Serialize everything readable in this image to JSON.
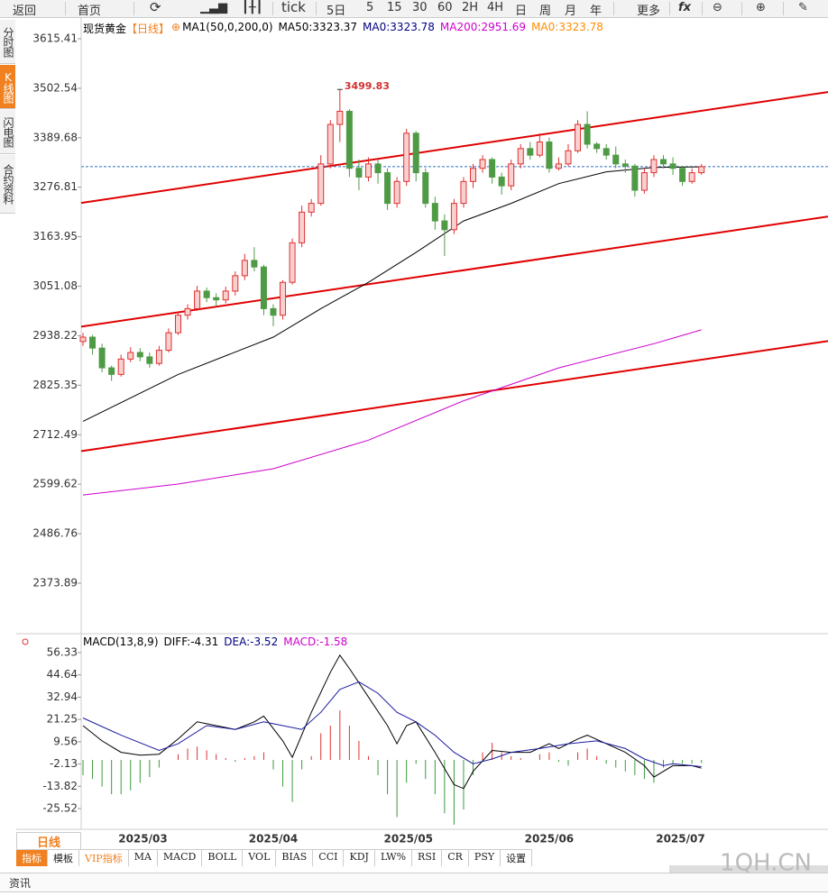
{
  "toolbar": [
    "返回",
    "首页",
    "tick",
    "5日",
    "5",
    "15",
    "30",
    "60",
    "2H",
    "4H",
    "日",
    "周",
    "月",
    "年",
    "更多"
  ],
  "sidebar": [
    "分时图",
    "K线图",
    "闪电图",
    "合约资料"
  ],
  "period_button": "日线",
  "tabs": [
    "指标",
    "模板",
    "VIP指标",
    "MA",
    "MACD",
    "BOLL",
    "VOL",
    "BIAS",
    "CCI",
    "KDJ",
    "LW%",
    "RSI",
    "CR",
    "PSY",
    "设置"
  ],
  "news_tab": "资讯",
  "watermark": "1QH.CN",
  "chart_data": [
    {
      "type": "candlestick",
      "title": "现货黄金",
      "period": "【日线】",
      "indicator": "MA1(50,0,200,0)",
      "legend": [
        {
          "label": "MA50:",
          "value": 3323.37,
          "color": "#000000"
        },
        {
          "label": "MA0:",
          "value": 3323.78,
          "color": "#000080"
        },
        {
          "label": "MA200:",
          "value": 2951.69,
          "color": "#cc00cc"
        },
        {
          "label": "MA0:",
          "value": 3323.78,
          "color": "#ff8c00"
        }
      ],
      "xlim": [
        -0.19,
        78.3
      ],
      "ylim": [
        2264.9,
        3662.7
      ],
      "yticks": [
        3615.41,
        3502.54,
        3389.68,
        3276.81,
        3163.95,
        3051.08,
        2938.22,
        2825.35,
        2712.49,
        2599.62,
        2486.76,
        2373.89
      ],
      "grid": false,
      "up_color": "#e03030",
      "up_fill": "#f8d0d0",
      "down_color": "#4f9a45",
      "open": [
        2925,
        2935,
        2910,
        2865,
        2850,
        2885,
        2900,
        2890,
        2875,
        2905,
        2945,
        2985,
        3000,
        3040,
        3025,
        3020,
        3040,
        3075,
        3110,
        3095,
        3000,
        2985,
        3060,
        3150,
        3220,
        3240,
        3330,
        3420,
        3450,
        3320,
        3300,
        3330,
        3310,
        3240,
        3290,
        3400,
        3310,
        3240,
        3200,
        3180,
        3240,
        3290,
        3320,
        3340,
        3300,
        3280,
        3330,
        3365,
        3350,
        3380,
        3320,
        3330,
        3360,
        3420,
        3375,
        3365,
        3350,
        3330,
        3325,
        3270,
        3310,
        3340,
        3330,
        3320,
        3290,
        3310
      ],
      "high": [
        2945,
        2940,
        2920,
        2870,
        2895,
        2912,
        2910,
        2900,
        2915,
        2955,
        2992,
        3010,
        3052,
        3048,
        3035,
        3050,
        3085,
        3125,
        3140,
        3100,
        3010,
        3065,
        3160,
        3235,
        3250,
        3350,
        3430,
        3499.83,
        3455,
        3340,
        3345,
        3340,
        3320,
        3300,
        3410,
        3405,
        3320,
        3255,
        3215,
        3250,
        3300,
        3330,
        3350,
        3345,
        3310,
        3340,
        3375,
        3380,
        3400,
        3390,
        3345,
        3375,
        3430,
        3450,
        3380,
        3375,
        3370,
        3340,
        3330,
        3320,
        3350,
        3350,
        3345,
        3325,
        3320,
        3330
      ],
      "low": [
        2915,
        2895,
        2855,
        2835,
        2845,
        2878,
        2880,
        2865,
        2870,
        2900,
        2940,
        2975,
        2995,
        3015,
        3005,
        3012,
        3030,
        3065,
        3085,
        2985,
        2960,
        2975,
        3055,
        3140,
        3210,
        3235,
        3320,
        3380,
        3300,
        3270,
        3290,
        3285,
        3225,
        3230,
        3280,
        3290,
        3230,
        3180,
        3120,
        3170,
        3230,
        3275,
        3310,
        3285,
        3260,
        3270,
        3320,
        3340,
        3345,
        3310,
        3315,
        3325,
        3355,
        3365,
        3355,
        3340,
        3320,
        3310,
        3255,
        3262,
        3300,
        3320,
        3305,
        3280,
        3285,
        3305
      ],
      "close": [
        2935,
        2910,
        2865,
        2850,
        2885,
        2900,
        2890,
        2875,
        2905,
        2945,
        2985,
        3000,
        3040,
        3025,
        3020,
        3040,
        3075,
        3110,
        3095,
        3000,
        2985,
        3060,
        3150,
        3220,
        3240,
        3330,
        3420,
        3450,
        3320,
        3300,
        3330,
        3310,
        3240,
        3290,
        3400,
        3310,
        3240,
        3200,
        3180,
        3240,
        3290,
        3320,
        3340,
        3300,
        3280,
        3330,
        3365,
        3350,
        3380,
        3320,
        3330,
        3360,
        3420,
        3375,
        3365,
        3350,
        3330,
        3325,
        3270,
        3310,
        3340,
        3330,
        3320,
        3290,
        3310,
        3323.78
      ],
      "high_label_index": 27,
      "lines": [
        {
          "name": "MA50",
          "color": "#000000",
          "x": [
            0,
            10,
            20,
            25,
            30,
            35,
            40,
            45,
            50,
            55,
            60,
            65
          ],
          "values": [
            2743,
            2850,
            2935,
            3000,
            3060,
            3128,
            3200,
            3240,
            3285,
            3312,
            3322,
            3323.37
          ]
        },
        {
          "name": "MA200",
          "color": "#cc00cc",
          "x": [
            0,
            10,
            20,
            30,
            40,
            50,
            60,
            65
          ],
          "values": [
            2575,
            2600,
            2635,
            2700,
            2790,
            2865,
            2920,
            2951.69
          ]
        }
      ],
      "trendlines": [
        {
          "values": [
            3241,
            3494
          ],
          "color": "#e00000"
        },
        {
          "values": [
            2959,
            3210
          ],
          "color": "#e00000"
        },
        {
          "values": [
            2675,
            2926
          ],
          "color": "#e00000"
        }
      ],
      "last_price_color": "#3070c0"
    },
    {
      "type": "macd",
      "title": "MACD(13,8,9)",
      "legend": [
        {
          "label": "DIFF:",
          "value": -4.31,
          "color": "#000000"
        },
        {
          "label": "DEA:",
          "value": -3.52,
          "color": "#000080"
        },
        {
          "label": "MACD:",
          "value": -1.58,
          "color": "#cc00cc"
        }
      ],
      "xlim": [
        -0.19,
        78.3
      ],
      "ylim": [
        -36.4,
        65.3
      ],
      "yticks": [
        56.33,
        44.64,
        32.94,
        21.25,
        9.56,
        -2.13,
        -13.82,
        -25.52
      ],
      "xticks": [
        {
          "value": 6.3,
          "label": "2025/03"
        },
        {
          "value": 20,
          "label": "2025/04"
        },
        {
          "value": 34.2,
          "label": "2025/05"
        },
        {
          "value": 49,
          "label": "2025/06"
        },
        {
          "value": 62.8,
          "label": "2025/07"
        }
      ],
      "series": [
        {
          "name": "DIFF",
          "color": "#000000",
          "x": [
            0,
            2,
            4,
            6,
            8,
            10,
            12,
            14,
            16,
            18,
            19,
            21,
            22,
            24,
            26,
            27,
            28,
            30,
            32,
            33,
            34,
            35,
            37,
            39,
            40,
            41,
            43,
            45,
            47,
            49,
            50,
            52,
            53,
            55,
            57,
            59,
            60,
            62,
            64,
            65
          ],
          "values": [
            18,
            10,
            4,
            2.5,
            3,
            11,
            20,
            18,
            16,
            20,
            23,
            10,
            1.4,
            25,
            46,
            55,
            48,
            33,
            18,
            8.5,
            18,
            20,
            4,
            -13,
            -15,
            -6,
            5,
            4,
            4,
            8.5,
            6,
            11,
            13,
            8.5,
            4,
            -3,
            -9,
            -3,
            -3,
            -4.31
          ]
        },
        {
          "name": "DEA",
          "color": "#1a1aa0",
          "x": [
            0,
            4,
            8,
            10,
            13,
            16,
            19,
            21,
            23,
            25,
            27,
            29,
            31,
            33,
            35,
            37,
            39,
            41,
            43,
            45,
            48,
            51,
            54,
            57,
            59,
            61,
            62,
            65
          ],
          "values": [
            22,
            13,
            5,
            8.5,
            18,
            16,
            20,
            18,
            16,
            25,
            37,
            41,
            35,
            25,
            20,
            13,
            4,
            -2,
            0.5,
            4,
            6,
            8.5,
            10,
            6,
            0.5,
            -3,
            -2,
            -3.52
          ]
        }
      ],
      "histogram": {
        "up_color": "#e03030",
        "down_color": "#3a9a3a",
        "values": [
          -8,
          -10,
          -14,
          -18,
          -18,
          -16,
          -12,
          -9,
          -4,
          0,
          3,
          6,
          7,
          5,
          3,
          1,
          -1,
          1,
          2,
          4,
          -5,
          -14,
          -22,
          -5,
          2,
          14,
          18,
          26,
          18,
          10,
          2,
          -8,
          -18,
          -30,
          -12,
          -2,
          -10,
          -18,
          -28,
          -34,
          -26,
          -8,
          4,
          9,
          4,
          2,
          1,
          0,
          3,
          4,
          -1,
          -3,
          4,
          6,
          2,
          -2,
          -4,
          -6,
          -8,
          -10,
          -12,
          -4,
          -2,
          -2,
          -2,
          -1.58
        ]
      }
    }
  ]
}
